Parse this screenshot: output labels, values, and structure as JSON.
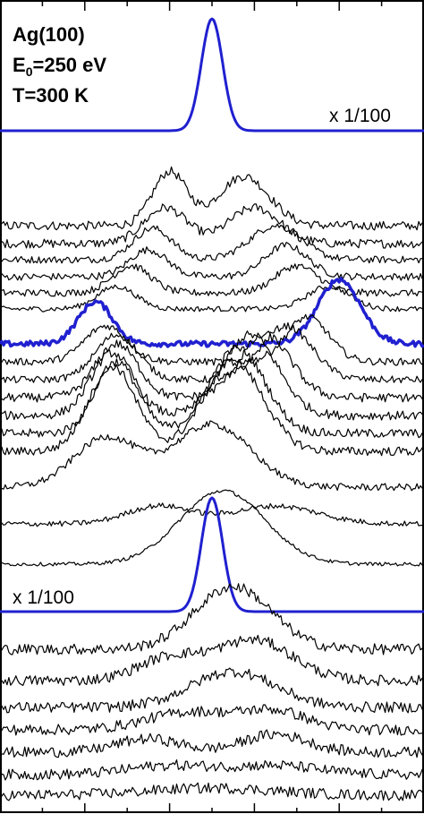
{
  "chart_data": {
    "type": "line",
    "title_lines": [
      "Ag(100)",
      "E",
      "0",
      "=250 eV",
      "T=300 K"
    ],
    "annotations": [
      "x 1/100",
      "x 1/100"
    ],
    "xlabel": "",
    "ylabel": "",
    "grid": false,
    "legend": "none",
    "colors": {
      "highlight": "#2020d0",
      "trace": "#000000",
      "axes": "#000000"
    },
    "x": {
      "unit": "relative energy loss (arbitrary, unlabeled)",
      "range": [
        -1,
        1
      ],
      "major_ticks": [
        -1,
        -0.6,
        -0.2,
        0.2,
        0.6,
        1
      ],
      "minor_ticks": [
        -0.8,
        -0.4,
        0,
        0.4,
        0.8
      ]
    },
    "series": [
      {
        "style": "blue",
        "baseline": 146,
        "scale_note": "x 1/100",
        "peaks": [
          [
            0,
            125,
            0.05
          ]
        ],
        "noise": 0
      },
      {
        "baseline": 252,
        "peaks": [
          [
            -0.2,
            60,
            0.08
          ],
          [
            0.15,
            55,
            0.12
          ]
        ],
        "noise": 5
      },
      {
        "baseline": 272,
        "peaks": [
          [
            -0.22,
            40,
            0.1
          ],
          [
            0.2,
            40,
            0.12
          ]
        ],
        "noise": 5
      },
      {
        "baseline": 290,
        "peaks": [
          [
            -0.28,
            35,
            0.09
          ],
          [
            0.3,
            38,
            0.12
          ]
        ],
        "noise": 4
      },
      {
        "baseline": 309,
        "peaks": [
          [
            -0.3,
            30,
            0.09
          ],
          [
            0.35,
            35,
            0.1
          ]
        ],
        "noise": 4
      },
      {
        "baseline": 327,
        "peaks": [
          [
            -0.38,
            30,
            0.09
          ],
          [
            0.4,
            30,
            0.1
          ]
        ],
        "noise": 4
      },
      {
        "baseline": 345,
        "peaks": [
          [
            -0.45,
            25,
            0.09
          ],
          [
            0.55,
            25,
            0.1
          ]
        ],
        "noise": 3
      },
      {
        "style": "blue-bold",
        "baseline": 384,
        "peaks": [
          [
            -0.55,
            47,
            0.08
          ],
          [
            0.6,
            72,
            0.1
          ]
        ],
        "noise": 3
      },
      {
        "baseline": 404,
        "peaks": [
          [
            -0.5,
            40,
            0.1
          ],
          [
            0.45,
            50,
            0.1
          ]
        ],
        "noise": 4
      },
      {
        "baseline": 424,
        "peaks": [
          [
            -0.45,
            50,
            0.1
          ],
          [
            0.35,
            60,
            0.12
          ]
        ],
        "noise": 4
      },
      {
        "baseline": 444,
        "peaks": [
          [
            -0.45,
            60,
            0.1
          ],
          [
            0.25,
            70,
            0.12
          ]
        ],
        "noise": 5
      },
      {
        "baseline": 464,
        "peaks": [
          [
            -0.47,
            70,
            0.1
          ],
          [
            0.18,
            90,
            0.13
          ]
        ],
        "noise": 5
      },
      {
        "baseline": 484,
        "peaks": [
          [
            -0.45,
            80,
            0.1
          ],
          [
            0.12,
            95,
            0.13
          ]
        ],
        "noise": 5
      },
      {
        "baseline": 504,
        "peaks": [
          [
            -0.47,
            95,
            0.11
          ],
          [
            0.1,
            100,
            0.14
          ]
        ],
        "noise": 5
      },
      {
        "baseline": 544,
        "peaks": [
          [
            -0.5,
            55,
            0.15
          ],
          [
            0.0,
            70,
            0.18
          ]
        ],
        "noise": 4
      },
      {
        "baseline": 585,
        "peaks": [
          [
            -0.25,
            20,
            0.15
          ],
          [
            0.3,
            20,
            0.2
          ]
        ],
        "noise": 3
      },
      {
        "baseline": 630,
        "peaks": [
          [
            0.05,
            82,
            0.2
          ]
        ],
        "noise": 2
      },
      {
        "style": "blue",
        "baseline": 683,
        "scale_note": "x 1/100",
        "peaks": [
          [
            0,
            127,
            0.05
          ]
        ],
        "noise": 0
      },
      {
        "baseline": 725,
        "peaks": [
          [
            0.1,
            70,
            0.18
          ]
        ],
        "noise": 6
      },
      {
        "baseline": 760,
        "peaks": [
          [
            -0.2,
            25,
            0.15
          ],
          [
            0.2,
            45,
            0.18
          ]
        ],
        "noise": 6
      },
      {
        "baseline": 790,
        "peaks": [
          [
            0.1,
            40,
            0.2
          ]
        ],
        "noise": 6
      },
      {
        "baseline": 815,
        "peaks": [
          [
            -0.1,
            20,
            0.2
          ],
          [
            0.3,
            20,
            0.15
          ]
        ],
        "noise": 6
      },
      {
        "baseline": 840,
        "peaks": [
          [
            -0.3,
            15,
            0.15
          ],
          [
            0.3,
            20,
            0.15
          ]
        ],
        "noise": 6
      },
      {
        "baseline": 865,
        "peaks": [
          [
            -0.2,
            10,
            0.2
          ],
          [
            0.3,
            10,
            0.2
          ]
        ],
        "noise": 6
      },
      {
        "baseline": 888,
        "peaks": [
          [
            0,
            8,
            0.3
          ]
        ],
        "noise": 6
      }
    ]
  }
}
